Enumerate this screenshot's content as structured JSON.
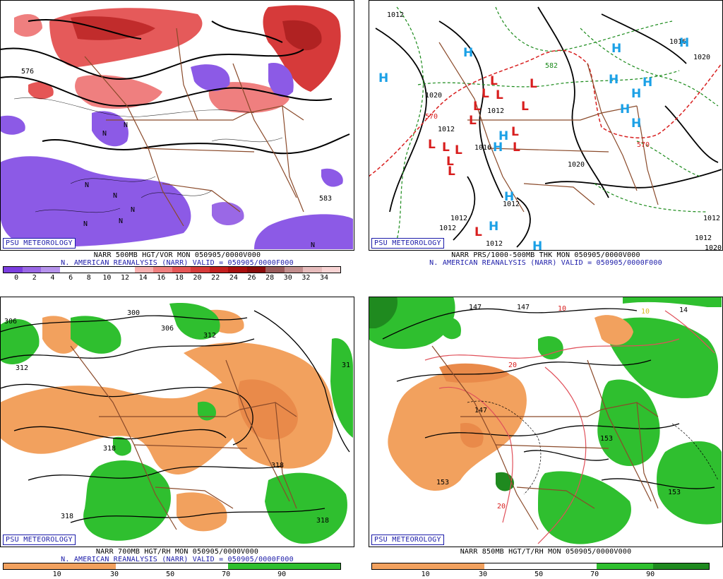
{
  "panels": {
    "p1": {
      "badge": "PSU METEOROLOGY",
      "caption_line1": "NARR 500MB HGT/VOR MON 050905/0000V000",
      "caption_line2": "N. AMERICAN REANALYSIS (NARR) VALID = 050905/0000F000",
      "scale_colors": [
        "#7b3ee0",
        "#9a68e6",
        "#b693ec",
        "#ffffff",
        "#ffffff",
        "#ffffff",
        "#ffffff",
        "#f7b0b0",
        "#ef7f7f",
        "#e55656",
        "#d63a3a",
        "#c41f1f",
        "#a80e0e",
        "#8a0a0a",
        "#9a5a5a",
        "#c28e8e",
        "#e6bcbc",
        "#f8d4d4"
      ],
      "scale_ticks": [
        "0",
        "2",
        "4",
        "6",
        "8",
        "10",
        "12",
        "14",
        "16",
        "18",
        "20",
        "22",
        "24",
        "26",
        "28",
        "30",
        "32",
        "34"
      ],
      "map_labels": [
        "576",
        "N",
        "N",
        "N",
        "N",
        "N",
        "N",
        "N",
        "N",
        "583"
      ]
    },
    "p2": {
      "badge": "PSU METEOROLOGY",
      "caption_line1": "NARR PRS/1000-500MB THK MON 050905/0000V000",
      "caption_line2": "N. AMERICAN REANALYSIS (NARR) VALID = 050905/0000F000",
      "map_labels": [
        "1012",
        "1020",
        "1012",
        "1012",
        "1016",
        "1012",
        "1020",
        "1012",
        "1012",
        "1012",
        "1012",
        "1020",
        "1016",
        "1012",
        "1020",
        "570",
        "570",
        "582"
      ],
      "high_symbol": "H",
      "low_symbol": "L"
    },
    "p3": {
      "badge": "PSU METEOROLOGY",
      "caption_line1": "NARR 700MB HGT/RH MON 050905/0000V000",
      "caption_line2": "N. AMERICAN REANALYSIS (NARR) VALID = 050905/0000F000",
      "scale_ticks": [
        "10",
        "30",
        "50",
        "70",
        "90"
      ],
      "map_labels": [
        "300",
        "306",
        "306",
        "312",
        "312",
        "31",
        "318",
        "318",
        "318",
        "318"
      ]
    },
    "p4": {
      "badge": "PSU METEOROLOGY",
      "caption_line2": "NARR 850MB HGT/T/RH MON 050905/0000V000",
      "scale_ticks": [
        "10",
        "30",
        "50",
        "70",
        "90"
      ],
      "map_labels": [
        "147",
        "147",
        "10",
        "10",
        "20",
        "147",
        "153",
        "153",
        "153",
        "20",
        "14"
      ]
    }
  },
  "colors": {
    "dry": "#f2a15e",
    "dry_dark": "#e98a4a",
    "moist": "#2fbf2f",
    "moist_dark": "#1f8a1f",
    "vort_pos": "#e55a5a",
    "vort_neg": "#8c5ae6",
    "border": "#8a4a2a",
    "badge_blue": "#1a1aa8",
    "high_blue": "#1aa0e6",
    "low_red": "#d81e1e"
  }
}
